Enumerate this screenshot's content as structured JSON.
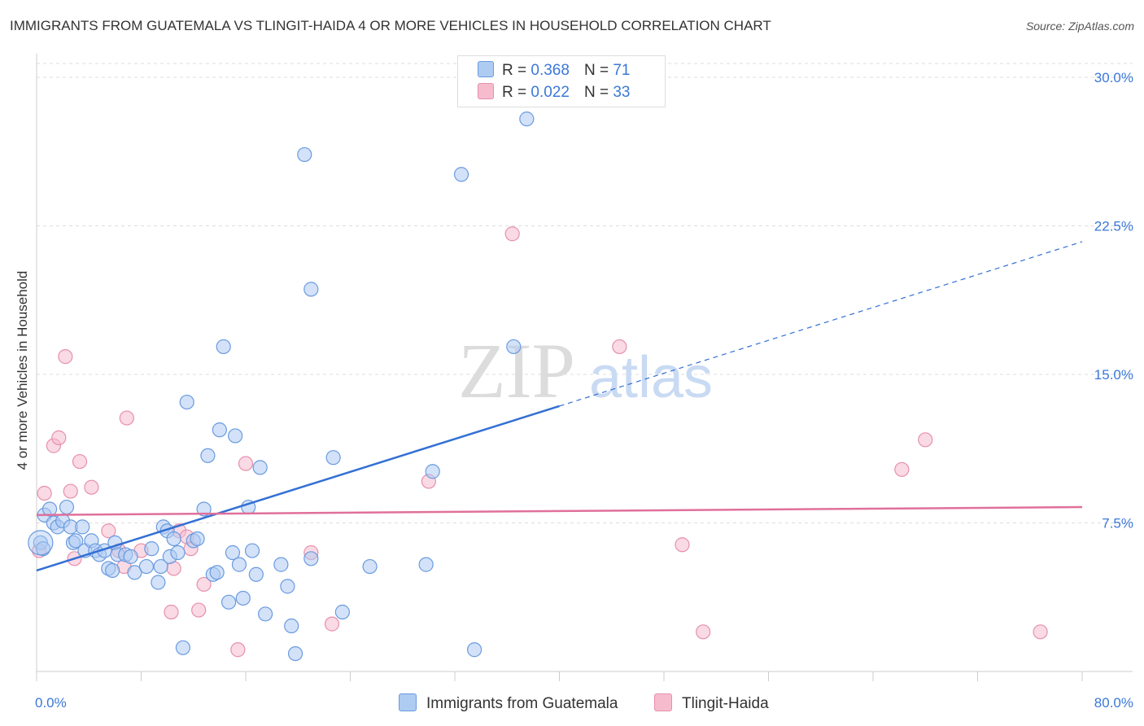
{
  "header": {
    "title": "IMMIGRANTS FROM GUATEMALA VS TLINGIT-HAIDA 4 OR MORE VEHICLES IN HOUSEHOLD CORRELATION CHART",
    "source": "Source: ZipAtlas.com"
  },
  "watermark": {
    "zip": "ZIP",
    "atlas": "atlas"
  },
  "legend": {
    "r_label": "R =",
    "n_label": "N =",
    "series1": {
      "r": "0.368",
      "n": "71"
    },
    "series2": {
      "r": "0.022",
      "n": "33"
    }
  },
  "chart_data": {
    "type": "scatter",
    "title": "IMMIGRANTS FROM GUATEMALA VS TLINGIT-HAIDA 4 OR MORE VEHICLES IN HOUSEHOLD CORRELATION CHART",
    "xlabel": "",
    "ylabel": "4 or more Vehicles in Household",
    "xlim": [
      0,
      80
    ],
    "ylim": [
      0,
      30.7
    ],
    "x_tick_labels": [
      "0.0%",
      "80.0%"
    ],
    "y_ticks": [
      7.5,
      15.0,
      22.5,
      30.0
    ],
    "y_tick_labels": [
      "7.5%",
      "15.0%",
      "22.5%",
      "30.0%"
    ],
    "grid": true,
    "legend_position": "top-center",
    "colors": {
      "series1_fill": "#aecbf2",
      "series1_stroke": "#6a9be0",
      "series1_line": "#3370d4",
      "series2_fill": "#f6bccd",
      "series2_stroke": "#e690ac",
      "series2_line": "#e0709a",
      "tick_label": "#3b78d8",
      "grid": "#dddddd"
    },
    "series": [
      {
        "name": "Immigrants from Guatemala",
        "r": 0.368,
        "n": 71,
        "trend": {
          "x0": 0,
          "y0": 5.1,
          "x1": 40,
          "y1": 13.4,
          "dashed_to_x": 80,
          "dashed_to_y": 21.7
        },
        "points": [
          [
            0.3,
            6.5
          ],
          [
            0.5,
            6.2
          ],
          [
            0.6,
            7.9
          ],
          [
            1.0,
            8.2
          ],
          [
            1.3,
            7.5
          ],
          [
            1.6,
            7.3
          ],
          [
            2.0,
            7.6
          ],
          [
            2.3,
            8.3
          ],
          [
            2.6,
            7.3
          ],
          [
            2.8,
            6.5
          ],
          [
            3.0,
            6.6
          ],
          [
            3.5,
            7.3
          ],
          [
            3.7,
            6.1
          ],
          [
            4.2,
            6.6
          ],
          [
            4.5,
            6.1
          ],
          [
            4.8,
            5.9
          ],
          [
            5.2,
            6.1
          ],
          [
            5.5,
            5.2
          ],
          [
            5.8,
            5.1
          ],
          [
            6.0,
            6.5
          ],
          [
            6.2,
            5.9
          ],
          [
            6.8,
            5.9
          ],
          [
            7.2,
            5.8
          ],
          [
            7.5,
            5.0
          ],
          [
            8.4,
            5.3
          ],
          [
            8.8,
            6.2
          ],
          [
            9.3,
            4.5
          ],
          [
            9.5,
            5.3
          ],
          [
            9.7,
            7.3
          ],
          [
            10.0,
            7.1
          ],
          [
            10.2,
            5.8
          ],
          [
            10.5,
            6.7
          ],
          [
            10.8,
            6.0
          ],
          [
            11.2,
            1.2
          ],
          [
            11.5,
            13.6
          ],
          [
            12.0,
            6.6
          ],
          [
            12.3,
            6.7
          ],
          [
            12.8,
            8.2
          ],
          [
            13.1,
            10.9
          ],
          [
            13.5,
            4.9
          ],
          [
            13.8,
            5.0
          ],
          [
            14.0,
            12.2
          ],
          [
            14.3,
            16.4
          ],
          [
            14.7,
            3.5
          ],
          [
            15.0,
            6.0
          ],
          [
            15.2,
            11.9
          ],
          [
            15.5,
            5.4
          ],
          [
            15.8,
            3.7
          ],
          [
            16.2,
            8.3
          ],
          [
            16.5,
            6.1
          ],
          [
            16.8,
            4.9
          ],
          [
            17.1,
            10.3
          ],
          [
            17.5,
            2.9
          ],
          [
            18.7,
            5.4
          ],
          [
            19.2,
            4.3
          ],
          [
            19.5,
            2.3
          ],
          [
            19.8,
            0.9
          ],
          [
            20.5,
            26.1
          ],
          [
            21.0,
            19.3
          ],
          [
            21.0,
            5.7
          ],
          [
            22.7,
            10.8
          ],
          [
            23.4,
            3.0
          ],
          [
            25.5,
            5.3
          ],
          [
            29.8,
            5.4
          ],
          [
            30.3,
            10.1
          ],
          [
            32.5,
            25.1
          ],
          [
            33.5,
            1.1
          ],
          [
            36.5,
            16.4
          ],
          [
            37.5,
            27.9
          ]
        ]
      },
      {
        "name": "Tlingit-Haida",
        "r": 0.022,
        "n": 33,
        "trend": {
          "x0": 0,
          "y0": 7.9,
          "x1": 80,
          "y1": 8.3
        },
        "points": [
          [
            0.2,
            6.1
          ],
          [
            0.6,
            9.0
          ],
          [
            1.3,
            11.4
          ],
          [
            1.7,
            11.8
          ],
          [
            2.2,
            15.9
          ],
          [
            2.6,
            9.1
          ],
          [
            2.9,
            5.7
          ],
          [
            3.3,
            10.6
          ],
          [
            4.2,
            9.3
          ],
          [
            5.5,
            7.1
          ],
          [
            6.3,
            6.1
          ],
          [
            6.7,
            5.3
          ],
          [
            6.9,
            12.8
          ],
          [
            8.0,
            6.1
          ],
          [
            10.3,
            3.0
          ],
          [
            10.5,
            5.2
          ],
          [
            10.9,
            7.1
          ],
          [
            11.5,
            6.8
          ],
          [
            11.8,
            6.2
          ],
          [
            12.4,
            3.1
          ],
          [
            12.8,
            4.4
          ],
          [
            15.4,
            1.1
          ],
          [
            16.0,
            10.5
          ],
          [
            21.0,
            6.0
          ],
          [
            22.6,
            2.4
          ],
          [
            30.0,
            9.6
          ],
          [
            36.4,
            22.1
          ],
          [
            44.6,
            16.4
          ],
          [
            49.4,
            6.4
          ],
          [
            51.0,
            2.0
          ],
          [
            66.2,
            10.2
          ],
          [
            68.0,
            11.7
          ],
          [
            76.8,
            2.0
          ]
        ]
      }
    ]
  },
  "bottom_legend": {
    "series1_label": "Immigrants from Guatemala",
    "series2_label": "Tlingit-Haida"
  }
}
